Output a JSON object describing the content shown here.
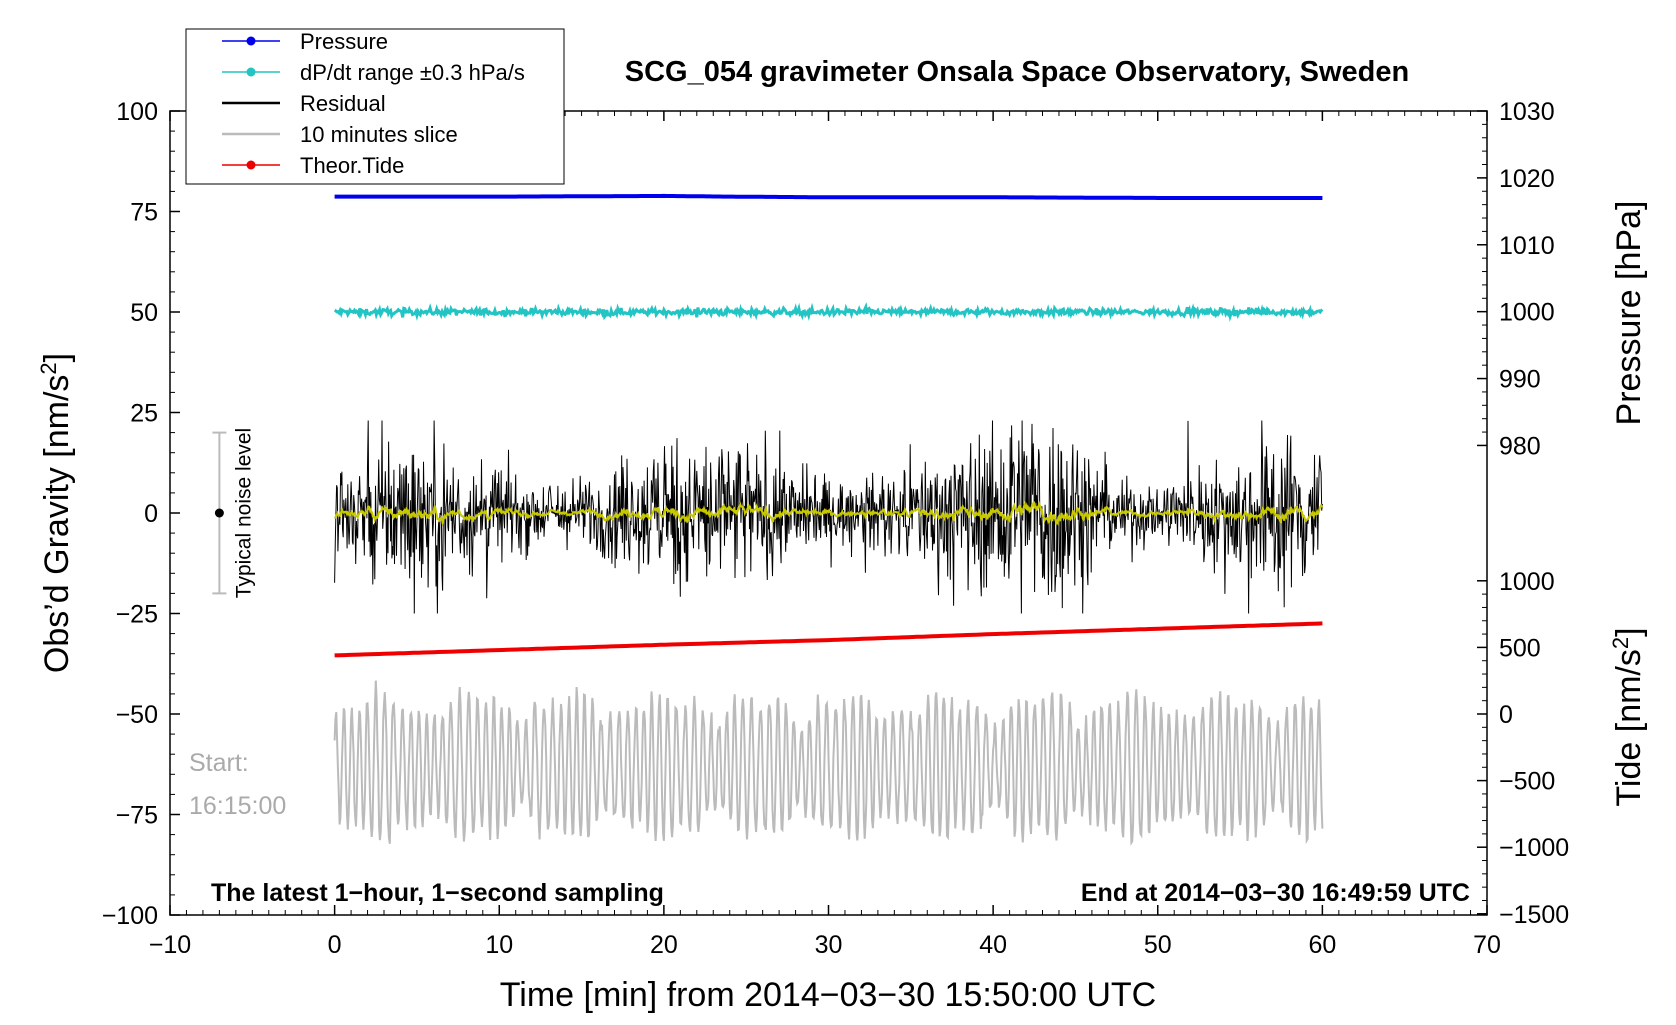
{
  "chart_data": {
    "type": "line",
    "title": "SCG_054 gravimeter Onsala Space Observatory, Sweden",
    "xlabel": "Time [min] from 2014−03−30 15:50:00 UTC",
    "ylabel_left": "Obs’d Gravity [nm/s²]",
    "ylabel_right_top": "Pressure [hPa]",
    "ylabel_right_bottom": "Tide [nm/s²]",
    "xlim": [
      -10,
      70
    ],
    "ylim": [
      -100,
      100
    ],
    "pressure_axis_range": [
      980,
      1030
    ],
    "tide_axis_range": [
      -1500,
      1000
    ],
    "x_ticks": [
      "−10",
      "0",
      "10",
      "20",
      "30",
      "40",
      "50",
      "60",
      "70"
    ],
    "x_tick_values": [
      -10,
      0,
      10,
      20,
      30,
      40,
      50,
      60,
      70
    ],
    "y_ticks": [
      "100",
      "75",
      "50",
      "25",
      "0",
      "−25",
      "−50",
      "−75",
      "−100"
    ],
    "y_tick_values": [
      100,
      75,
      50,
      25,
      0,
      -25,
      -50,
      -75,
      -100
    ],
    "pressure_ticks": [
      "1030",
      "1020",
      "1010",
      "1000",
      "990",
      "980"
    ],
    "pressure_tick_values": [
      1030,
      1020,
      1010,
      1000,
      990,
      980
    ],
    "tide_ticks": [
      "1000",
      "500",
      "0",
      "−500",
      "−1000",
      "−1500"
    ],
    "tide_tick_values": [
      1000,
      500,
      0,
      -500,
      -1000,
      -1500
    ],
    "series": [
      {
        "name": "Pressure",
        "color": "#0000ee",
        "axis": "pressure",
        "x": [
          0,
          10,
          20,
          24,
          30,
          40,
          50,
          60
        ],
        "values": [
          1017.2,
          1017.2,
          1017.3,
          1017.2,
          1017.1,
          1017.1,
          1017.0,
          1017.0
        ]
      },
      {
        "name": "dP/dt range ±0.3 hPa/s",
        "color": "#22c4c4",
        "axis": "gravity",
        "x": [
          0,
          60
        ],
        "values": [
          50,
          50
        ],
        "spread": 0.8
      },
      {
        "name": "Residual",
        "color": "#000000",
        "axis": "gravity",
        "x": [
          0,
          60
        ],
        "values": [
          0,
          0
        ],
        "spread": 22
      },
      {
        "name": "10 minutes slice",
        "color": "#bbbbbb",
        "axis": "gravity",
        "x": [
          0,
          60
        ],
        "values": [
          -63,
          -63
        ],
        "spread": 15
      },
      {
        "name": "Theor.Tide",
        "color": "#ee0000",
        "axis": "tide",
        "x": [
          0,
          10,
          20,
          30,
          40,
          50,
          60
        ],
        "values": [
          440,
          480,
          520,
          555,
          600,
          640,
          680
        ]
      }
    ],
    "legend": [
      {
        "label": "Pressure",
        "color": "#0000ee",
        "marker": true
      },
      {
        "label": "dP/dt range ±0.3 hPa/s",
        "color": "#22c4c4",
        "marker": true
      },
      {
        "label": "Residual",
        "color": "#000000",
        "marker": false
      },
      {
        "label": "10 minutes slice",
        "color": "#bbbbbb",
        "marker": false
      },
      {
        "label": "Theor.Tide",
        "color": "#ee0000",
        "marker": true
      }
    ],
    "legend_position": "top-left",
    "noise_bar": {
      "x": -7,
      "center": 0,
      "halfrange": 20,
      "label": "Typical noise level"
    },
    "smoothed_color": "#c8c800",
    "note_left": "The latest 1−hour, 1−second sampling",
    "note_right": "End at 2014−03−30 16:49:59 UTC",
    "start_label": "Start:",
    "start_time": "16:15:00"
  }
}
